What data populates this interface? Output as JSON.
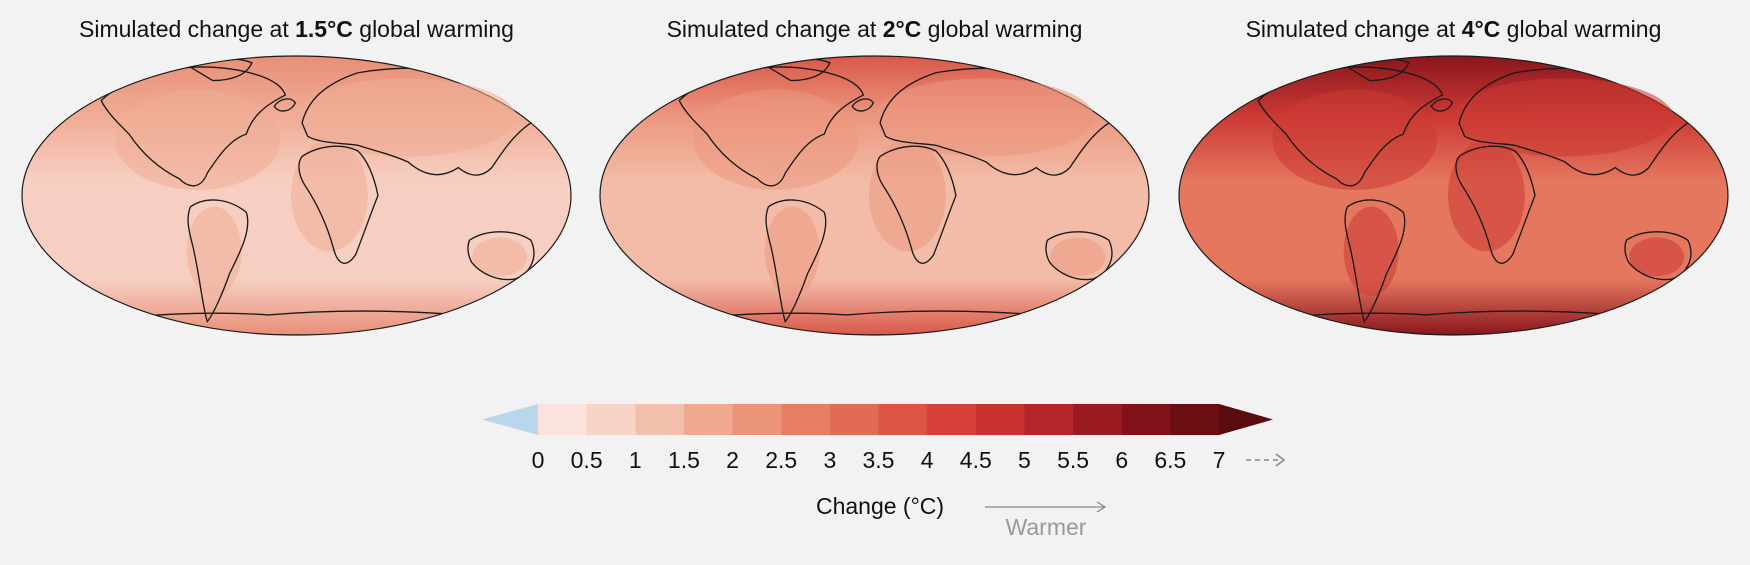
{
  "panels": [
    {
      "title_prefix": "Simulated change at ",
      "title_bold": "1.5°C",
      "title_suffix": " global warming",
      "ocean_color": "#f7cfc2",
      "pole_color": "#e88f77",
      "land_color": "#f0ad96"
    },
    {
      "title_prefix": "Simulated change at ",
      "title_bold": "2°C",
      "title_suffix": " global warming",
      "ocean_color": "#f3bca8",
      "pole_color": "#d9584a",
      "land_color": "#ec987f"
    },
    {
      "title_prefix": "Simulated change at ",
      "title_bold": "4°C",
      "title_suffix": " global warming",
      "ocean_color": "#e5775f",
      "pole_color": "#8a161d",
      "land_color": "#cc3a34"
    }
  ],
  "colorbar": {
    "ticks": [
      0,
      0.5,
      1,
      1.5,
      2,
      2.5,
      3,
      3.5,
      4,
      4.5,
      5,
      5.5,
      6,
      6.5,
      7
    ],
    "colors": [
      "#fbe2dc",
      "#f8d3c8",
      "#f4c0ae",
      "#f0a891",
      "#ec9479",
      "#e77f65",
      "#e26b55",
      "#dc5646",
      "#d54138",
      "#c9302e",
      "#b42428",
      "#9c1a22",
      "#821219",
      "#6b0e12"
    ],
    "under_color": "#b9d6ea",
    "over_color": "#5a0b10",
    "label": "Change (°C)",
    "direction_label": "Warmer"
  }
}
